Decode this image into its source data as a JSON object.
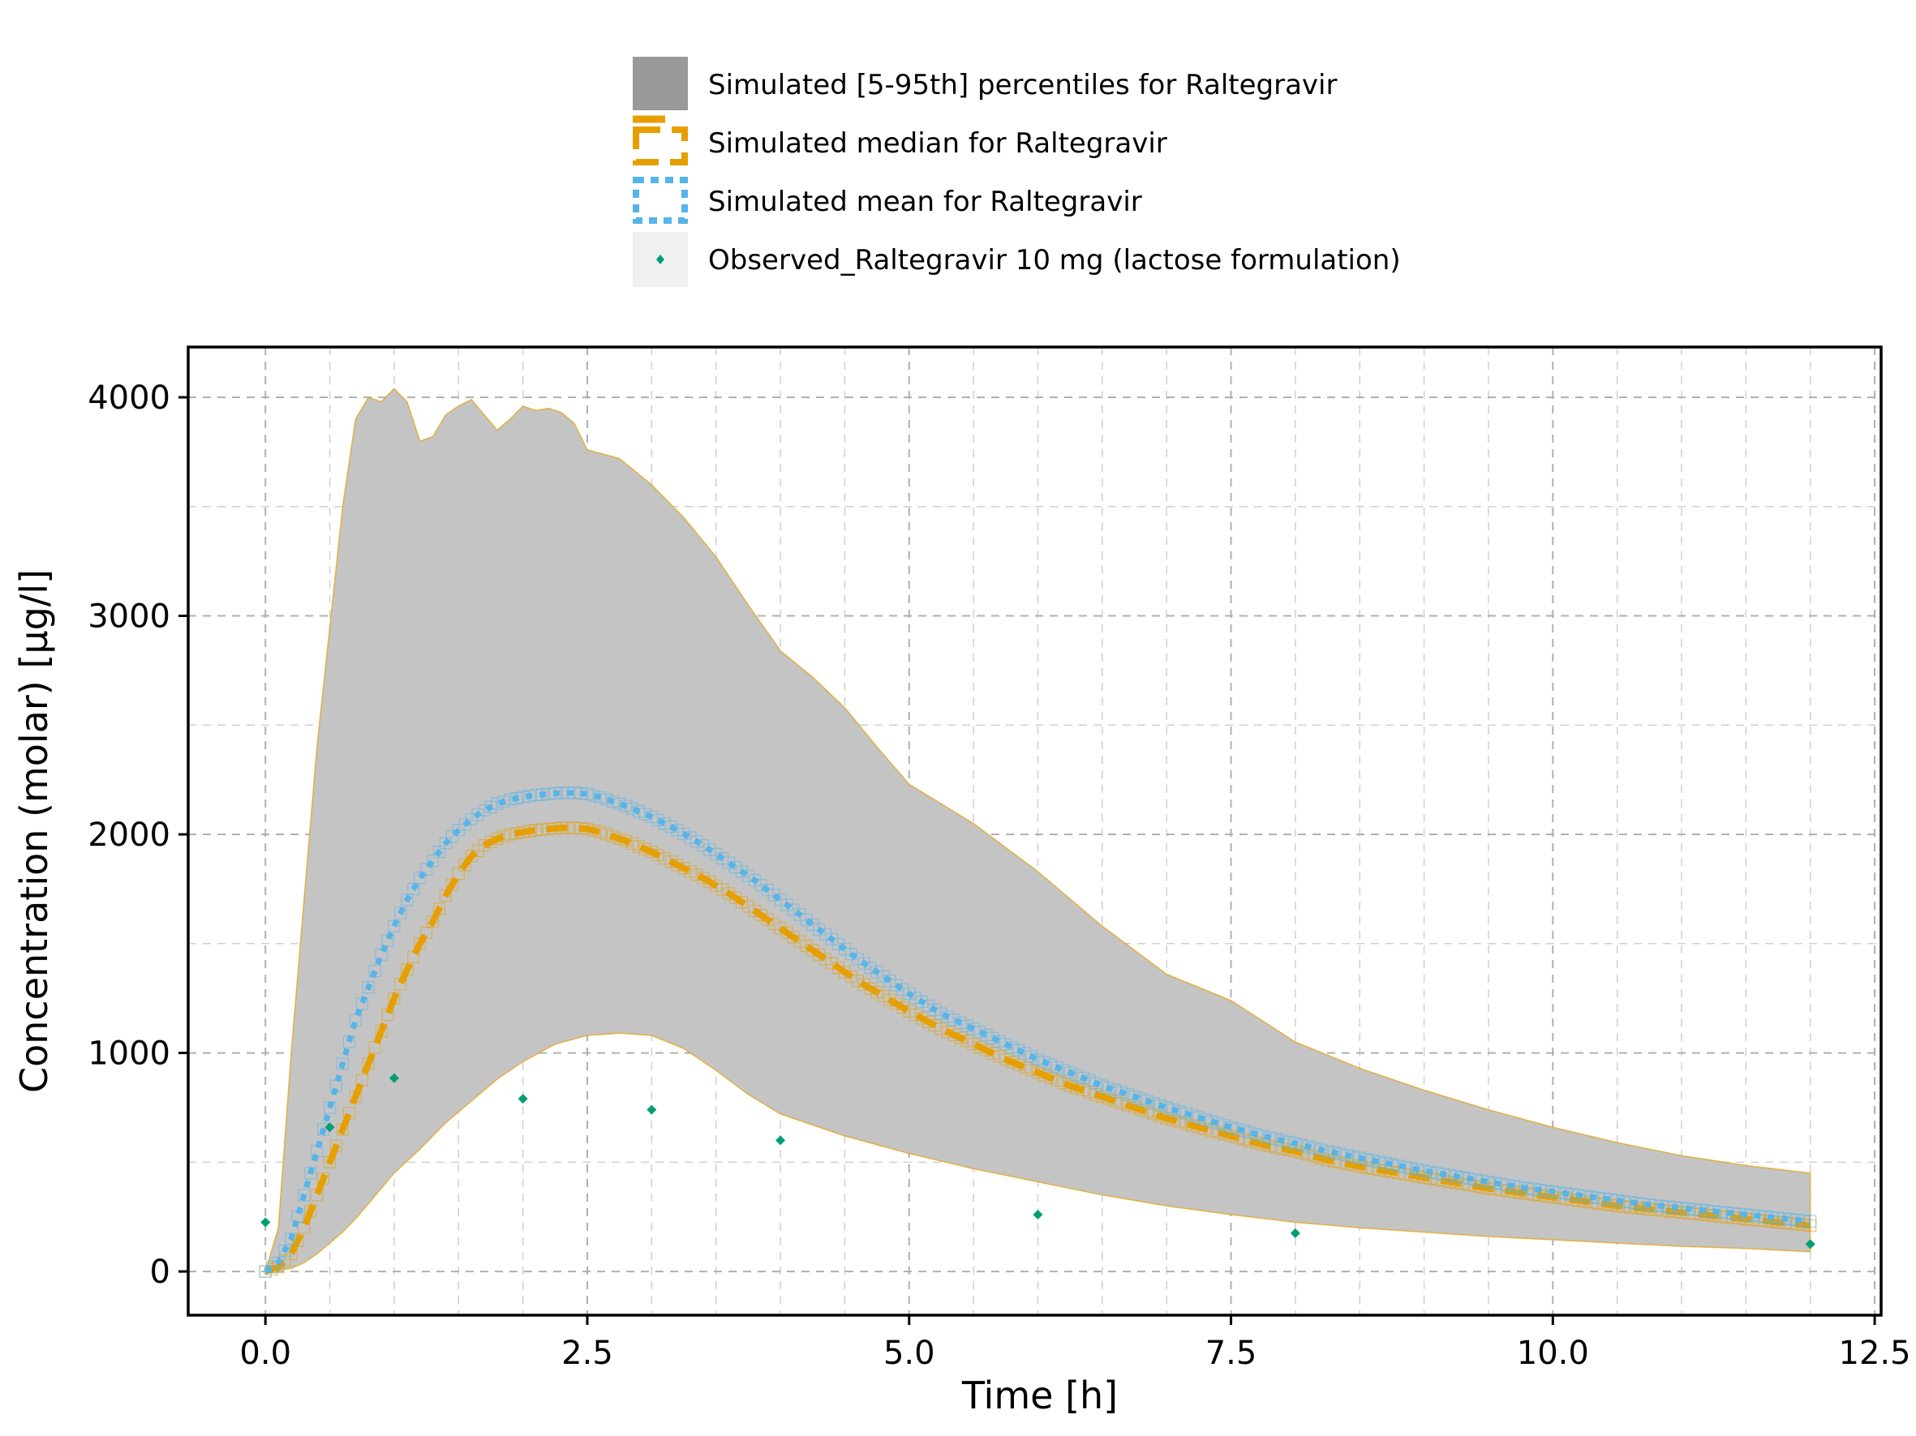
{
  "chart_data": {
    "type": "area",
    "title": "",
    "xlabel": "Time [h]",
    "ylabel": "Concentration (molar) [µg/l]",
    "xlim": [
      -0.6,
      12.55
    ],
    "ylim": [
      -200,
      4230
    ],
    "x_ticks": [
      0.0,
      2.5,
      5.0,
      7.5,
      10.0,
      12.5
    ],
    "x_tick_labels": [
      "0.0",
      "2.5",
      "5.0",
      "7.5",
      "10.0",
      "12.5"
    ],
    "y_ticks": [
      0,
      1000,
      2000,
      3000,
      4000
    ],
    "y_tick_labels": [
      "0",
      "1000",
      "2000",
      "3000",
      "4000"
    ],
    "grid": true,
    "legend_position": "top-center, outside plot",
    "legend": [
      {
        "label": "Simulated [5-95th] percentiles for Raltegravir",
        "kind": "band",
        "color": "#999999"
      },
      {
        "label": "Simulated median for Raltegravir",
        "kind": "dashed-line-squares",
        "color": "#E69F00"
      },
      {
        "label": "Simulated mean for Raltegravir",
        "kind": "dotted-line-squares",
        "color": "#56B4E9"
      },
      {
        "label": "Observed_Raltegravir 10 mg (lactose formulation)",
        "kind": "diamond",
        "color": "#009E73"
      }
    ],
    "band": {
      "name": "Simulated [5-95th] percentiles for Raltegravir",
      "fill": "#c4c4c4",
      "edge": "#E69F00",
      "upper": [
        [
          0,
          0
        ],
        [
          0.1,
          200
        ],
        [
          0.2,
          1000
        ],
        [
          0.3,
          1700
        ],
        [
          0.4,
          2400
        ],
        [
          0.5,
          2950
        ],
        [
          0.6,
          3500
        ],
        [
          0.7,
          3900
        ],
        [
          0.8,
          4000
        ],
        [
          0.9,
          3980
        ],
        [
          1.0,
          4040
        ],
        [
          1.1,
          3980
        ],
        [
          1.2,
          3800
        ],
        [
          1.3,
          3820
        ],
        [
          1.4,
          3920
        ],
        [
          1.5,
          3960
        ],
        [
          1.6,
          3990
        ],
        [
          1.7,
          3920
        ],
        [
          1.8,
          3850
        ],
        [
          1.9,
          3900
        ],
        [
          2.0,
          3960
        ],
        [
          2.1,
          3940
        ],
        [
          2.2,
          3950
        ],
        [
          2.3,
          3930
        ],
        [
          2.4,
          3880
        ],
        [
          2.5,
          3760
        ],
        [
          2.75,
          3720
        ],
        [
          3.0,
          3600
        ],
        [
          3.25,
          3450
        ],
        [
          3.5,
          3270
        ],
        [
          3.75,
          3050
        ],
        [
          4.0,
          2840
        ],
        [
          4.25,
          2720
        ],
        [
          4.5,
          2580
        ],
        [
          4.75,
          2400
        ],
        [
          5.0,
          2230
        ],
        [
          5.5,
          2050
        ],
        [
          6.0,
          1830
        ],
        [
          6.5,
          1580
        ],
        [
          7.0,
          1360
        ],
        [
          7.5,
          1240
        ],
        [
          8.0,
          1050
        ],
        [
          8.5,
          930
        ],
        [
          9.0,
          830
        ],
        [
          9.5,
          740
        ],
        [
          10.0,
          660
        ],
        [
          10.5,
          590
        ],
        [
          11.0,
          530
        ],
        [
          11.5,
          485
        ],
        [
          12.0,
          450
        ]
      ],
      "lower": [
        [
          0,
          0
        ],
        [
          0.1,
          5
        ],
        [
          0.2,
          15
        ],
        [
          0.3,
          40
        ],
        [
          0.4,
          80
        ],
        [
          0.5,
          130
        ],
        [
          0.6,
          180
        ],
        [
          0.7,
          240
        ],
        [
          0.8,
          310
        ],
        [
          0.9,
          380
        ],
        [
          1.0,
          450
        ],
        [
          1.2,
          560
        ],
        [
          1.4,
          680
        ],
        [
          1.6,
          780
        ],
        [
          1.8,
          880
        ],
        [
          2.0,
          960
        ],
        [
          2.25,
          1040
        ],
        [
          2.5,
          1080
        ],
        [
          2.75,
          1090
        ],
        [
          3.0,
          1080
        ],
        [
          3.25,
          1020
        ],
        [
          3.5,
          920
        ],
        [
          3.75,
          810
        ],
        [
          4.0,
          720
        ],
        [
          4.5,
          620
        ],
        [
          5.0,
          540
        ],
        [
          5.5,
          470
        ],
        [
          6.0,
          410
        ],
        [
          6.5,
          350
        ],
        [
          7.0,
          300
        ],
        [
          7.5,
          260
        ],
        [
          8.0,
          225
        ],
        [
          8.5,
          200
        ],
        [
          9.0,
          180
        ],
        [
          9.5,
          160
        ],
        [
          10.0,
          145
        ],
        [
          10.5,
          130
        ],
        [
          11.0,
          115
        ],
        [
          11.5,
          105
        ],
        [
          12.0,
          90
        ]
      ]
    },
    "series": [
      {
        "name": "Simulated median for Raltegravir",
        "color": "#E69F00",
        "x": [
          0,
          0.1,
          0.2,
          0.3,
          0.4,
          0.5,
          0.6,
          0.7,
          0.8,
          0.9,
          1.0,
          1.1,
          1.2,
          1.3,
          1.4,
          1.5,
          1.6,
          1.7,
          1.8,
          1.9,
          2.0,
          2.1,
          2.2,
          2.3,
          2.4,
          2.5,
          2.6,
          2.8,
          3.0,
          3.2,
          3.4,
          3.6,
          3.8,
          4.0,
          4.2,
          4.4,
          4.6,
          4.8,
          5.0,
          5.25,
          5.5,
          5.75,
          6.0,
          6.25,
          6.5,
          6.75,
          7.0,
          7.25,
          7.5,
          7.75,
          8.0,
          8.25,
          8.5,
          8.75,
          9.0,
          9.25,
          9.5,
          9.75,
          10.0,
          10.25,
          10.5,
          10.75,
          11.0,
          11.25,
          11.5,
          11.75,
          12.0
        ],
        "y": [
          0,
          20,
          80,
          200,
          350,
          500,
          650,
          800,
          950,
          1100,
          1250,
          1380,
          1500,
          1600,
          1720,
          1820,
          1900,
          1950,
          1980,
          2000,
          2010,
          2020,
          2025,
          2030,
          2030,
          2025,
          2010,
          1970,
          1920,
          1860,
          1800,
          1730,
          1650,
          1570,
          1490,
          1410,
          1330,
          1260,
          1190,
          1110,
          1040,
          970,
          910,
          850,
          800,
          750,
          700,
          660,
          620,
          580,
          550,
          510,
          480,
          455,
          430,
          405,
          380,
          360,
          340,
          320,
          300,
          285,
          270,
          255,
          240,
          225,
          210
        ]
      },
      {
        "name": "Simulated mean for Raltegravir",
        "color": "#56B4E9",
        "x": [
          0,
          0.1,
          0.2,
          0.3,
          0.4,
          0.5,
          0.6,
          0.7,
          0.8,
          0.9,
          1.0,
          1.1,
          1.2,
          1.3,
          1.4,
          1.5,
          1.6,
          1.7,
          1.8,
          1.9,
          2.0,
          2.1,
          2.2,
          2.3,
          2.4,
          2.5,
          2.6,
          2.8,
          3.0,
          3.2,
          3.4,
          3.6,
          3.8,
          4.0,
          4.2,
          4.4,
          4.6,
          4.8,
          5.0,
          5.25,
          5.5,
          5.75,
          6.0,
          6.25,
          6.5,
          6.75,
          7.0,
          7.25,
          7.5,
          7.75,
          8.0,
          8.25,
          8.5,
          8.75,
          9.0,
          9.25,
          9.5,
          9.75,
          10.0,
          10.25,
          10.5,
          10.75,
          11.0,
          11.25,
          11.5,
          11.75,
          12.0
        ],
        "y": [
          0,
          40,
          150,
          350,
          550,
          750,
          950,
          1150,
          1300,
          1450,
          1580,
          1700,
          1800,
          1880,
          1960,
          2020,
          2070,
          2110,
          2140,
          2160,
          2170,
          2180,
          2185,
          2190,
          2190,
          2185,
          2170,
          2130,
          2080,
          2020,
          1950,
          1870,
          1790,
          1700,
          1610,
          1520,
          1430,
          1350,
          1270,
          1180,
          1110,
          1040,
          970,
          910,
          850,
          800,
          750,
          705,
          660,
          620,
          585,
          550,
          520,
          490,
          460,
          435,
          410,
          385,
          365,
          345,
          325,
          305,
          290,
          275,
          260,
          245,
          230
        ]
      }
    ],
    "observed": {
      "name": "Observed_Raltegravir 10 mg (lactose formulation)",
      "color": "#009E73",
      "x": [
        0,
        0.5,
        1,
        2,
        3,
        4,
        6,
        8,
        12
      ],
      "y": [
        225,
        660,
        885,
        790,
        740,
        600,
        260,
        175,
        125
      ]
    }
  }
}
